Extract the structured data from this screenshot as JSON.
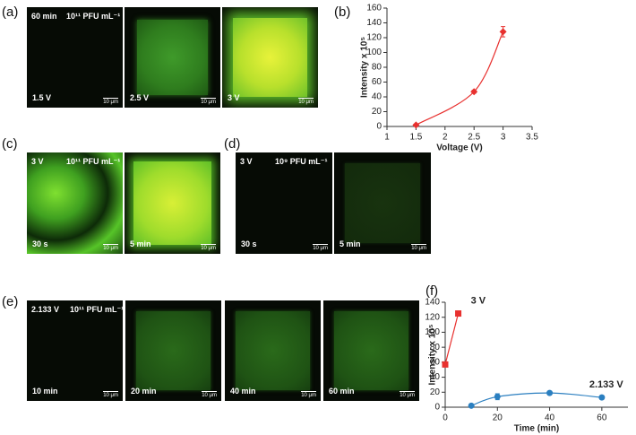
{
  "panels": [
    {
      "label": "(a)",
      "condition": "60 min",
      "concentration": "10¹¹ PFU mL⁻¹",
      "tiles": [
        "1.5 V",
        "2.5 V",
        "3 V"
      ]
    },
    {
      "label": "(b)"
    },
    {
      "label": "(c)",
      "condition": "3 V",
      "concentration": "10¹¹ PFU mL⁻¹",
      "tiles": [
        "30 s",
        "5 min"
      ]
    },
    {
      "label": "(d)",
      "condition": "3 V",
      "concentration": "10⁹ PFU mL⁻¹",
      "tiles": [
        "30 s",
        "5 min"
      ]
    },
    {
      "label": "(e)",
      "condition": "2.133 V",
      "concentration": "10¹¹ PFU mL⁻¹",
      "tiles": [
        "10 min",
        "20 min",
        "40 min",
        "60 min"
      ]
    },
    {
      "label": "(f)"
    }
  ],
  "scale_bar": "10 μm",
  "chart_data": [
    {
      "type": "line",
      "x_label": "Voltage (V)",
      "y_label": "Intensity x 10⁵",
      "xlim": [
        1,
        3.5
      ],
      "xticks": [
        1,
        1.5,
        2,
        2.5,
        3,
        3.5
      ],
      "ylim": [
        0,
        160
      ],
      "yticks": [
        0,
        20,
        40,
        60,
        80,
        100,
        120,
        140,
        160
      ],
      "grid": false,
      "smooth": true,
      "series": [
        {
          "color": "#e8312f",
          "marker": "diamond",
          "x": [
            1.5,
            2.5,
            3
          ],
          "values": [
            2,
            47,
            128
          ],
          "errors": [
            1,
            2,
            7
          ]
        }
      ]
    },
    {
      "type": "line",
      "x_label": "Time (min)",
      "y_label": "Intensity x 10⁵",
      "xlim": [
        0,
        70
      ],
      "xticks": [
        0,
        20,
        40,
        60
      ],
      "ylim": [
        0,
        140
      ],
      "yticks": [
        0,
        20,
        40,
        60,
        80,
        100,
        120,
        140
      ],
      "grid": false,
      "smooth": true,
      "series_labels": true,
      "series": [
        {
          "name": "3 V",
          "color": "#e8312f",
          "marker": "square",
          "x": [
            0,
            5
          ],
          "values": [
            57,
            125
          ],
          "errors": [
            3,
            3
          ]
        },
        {
          "name": "2.133 V",
          "color": "#2b7fc0",
          "marker": "circle",
          "x": [
            10,
            20,
            40,
            60
          ],
          "values": [
            2,
            14,
            19,
            13
          ],
          "errors": [
            0,
            4,
            2,
            2
          ]
        }
      ]
    }
  ]
}
